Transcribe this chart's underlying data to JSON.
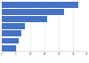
{
  "values": [
    27,
    22,
    16,
    8,
    7,
    6,
    5
  ],
  "bar_color": "#4472c4",
  "background_color": "#ffffff",
  "xlim": [
    0,
    30
  ],
  "bar_height": 0.85,
  "grid_color": "#e0e0e0",
  "xticks": [
    0,
    5,
    10,
    15,
    20,
    25,
    30
  ]
}
